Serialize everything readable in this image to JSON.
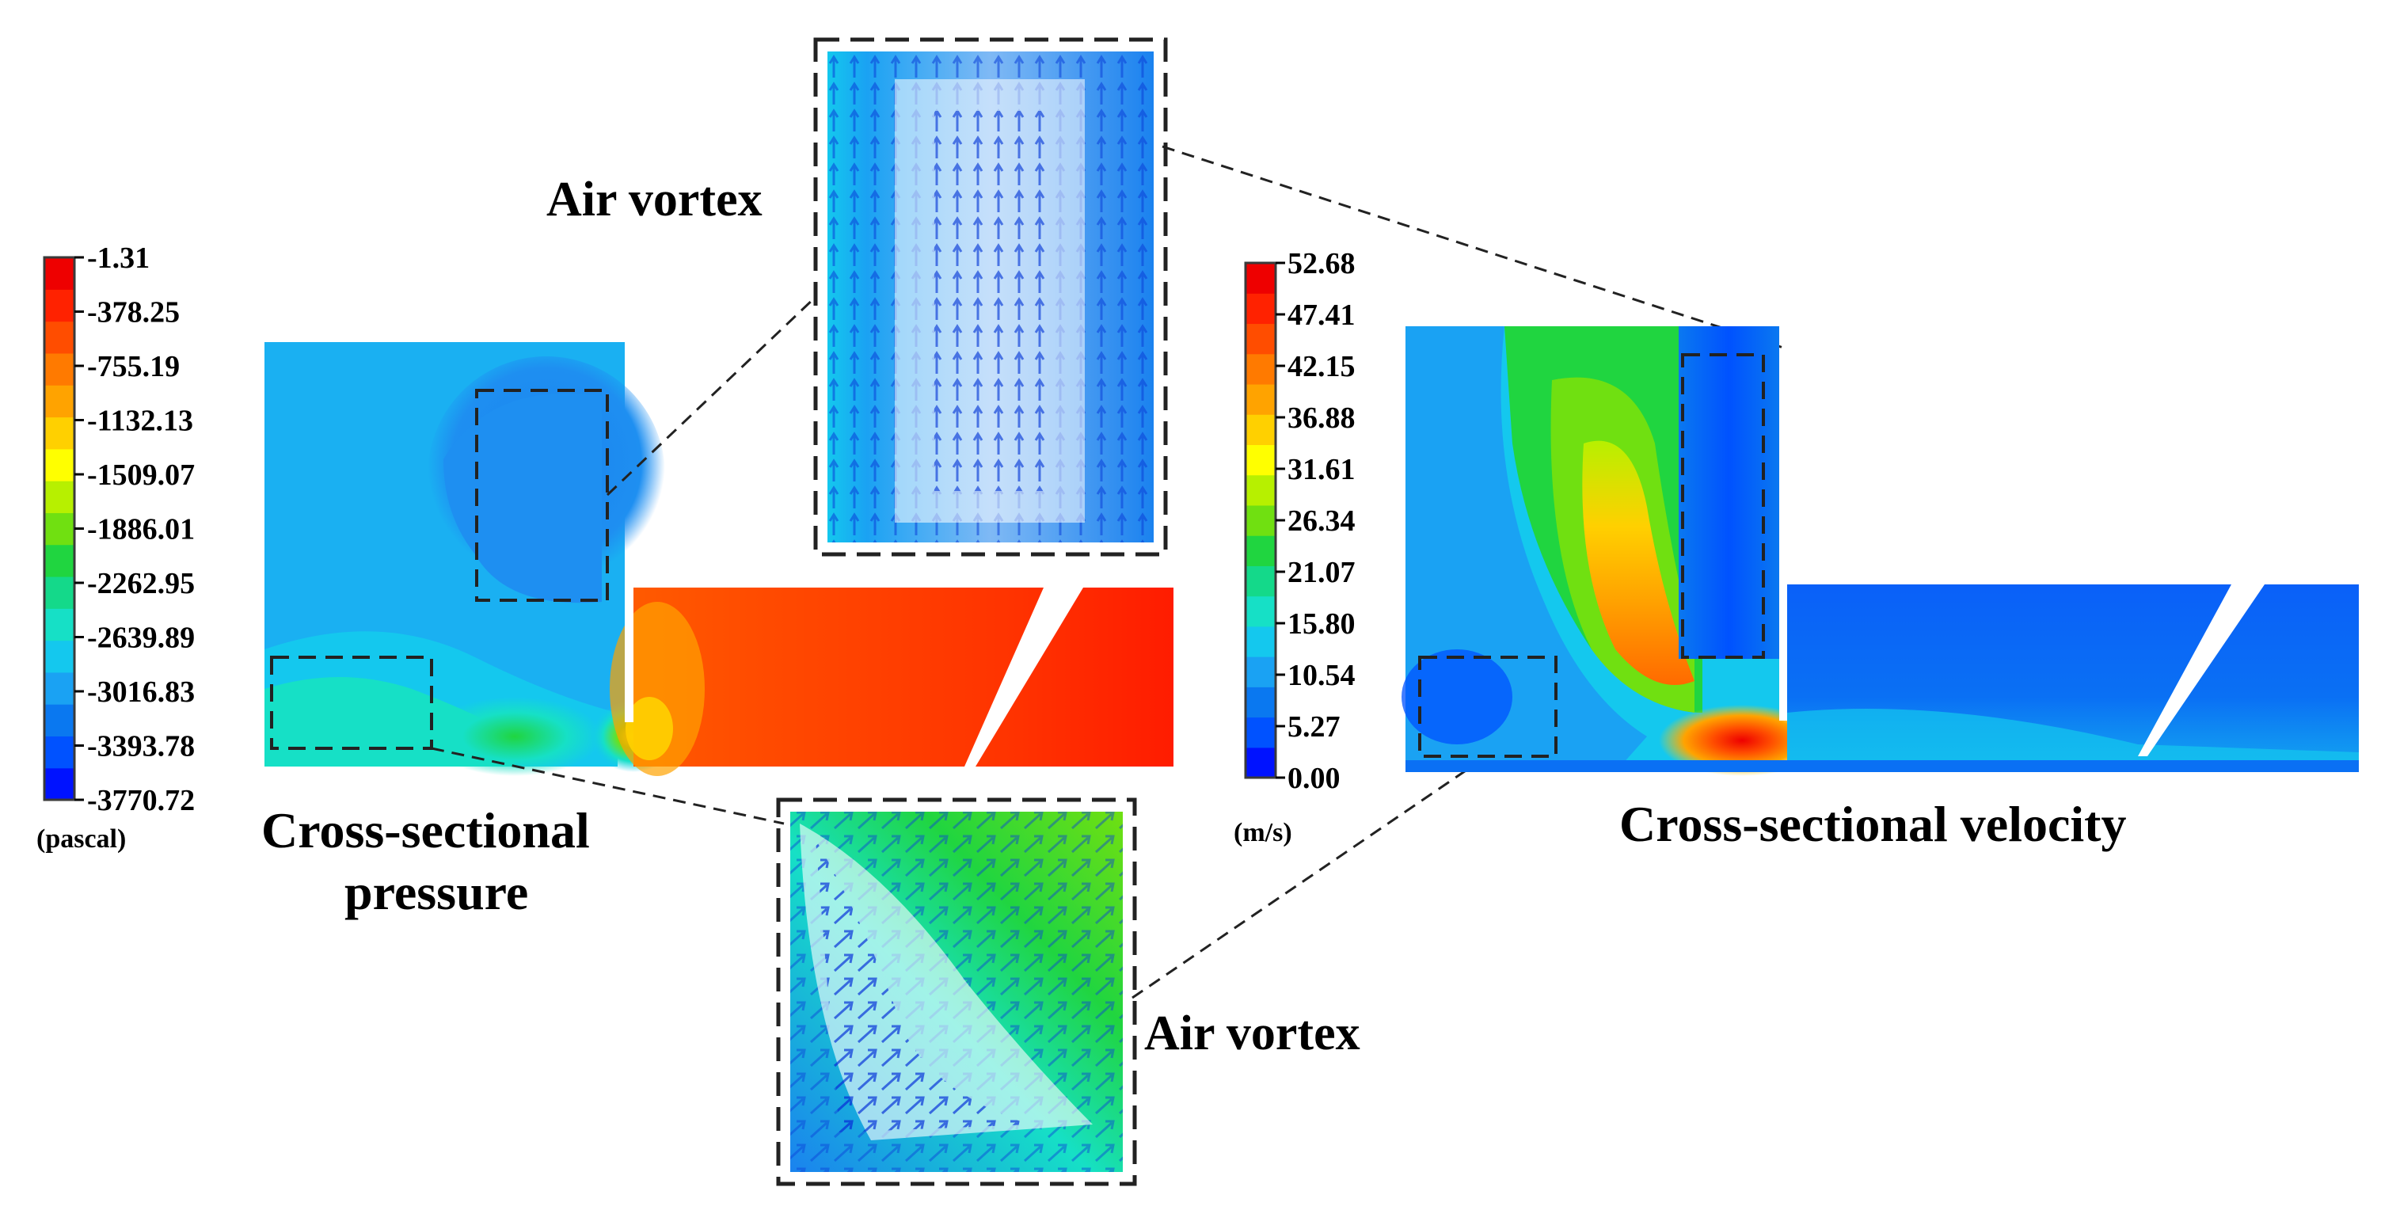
{
  "colors": {
    "scale": [
      "#0012ff",
      "#0052ff",
      "#0a78f0",
      "#1aa2f3",
      "#14c8ee",
      "#16e0c6",
      "#14d98a",
      "#20d540",
      "#70e011",
      "#b7f000",
      "#ffff00",
      "#ffd000",
      "#ffa300",
      "#ff7a00",
      "#ff4d00",
      "#ff2200",
      "#ee0000"
    ],
    "frame": "#3a3a3a",
    "dash": "#222222"
  },
  "pressure_panel": {
    "title_line1": "Cross-sectional",
    "title_line2": "pressure",
    "legend": {
      "ticks": [
        "-1.31",
        "-378.25",
        "-755.19",
        "-1132.13",
        "-1509.07",
        "-1886.01",
        "-2262.95",
        "-2639.89",
        "-3016.83",
        "-3393.78",
        "-3770.72"
      ],
      "unit": "(pascal)"
    }
  },
  "velocity_panel": {
    "title": "Cross-sectional velocity",
    "legend": {
      "ticks": [
        "52.68",
        "47.41",
        "42.15",
        "36.88",
        "31.61",
        "26.34",
        "21.07",
        "15.80",
        "10.54",
        "5.27",
        "0.00"
      ],
      "unit": "(m/s)"
    }
  },
  "callouts": {
    "top": "Air vortex",
    "bottom": "Air vortex"
  }
}
